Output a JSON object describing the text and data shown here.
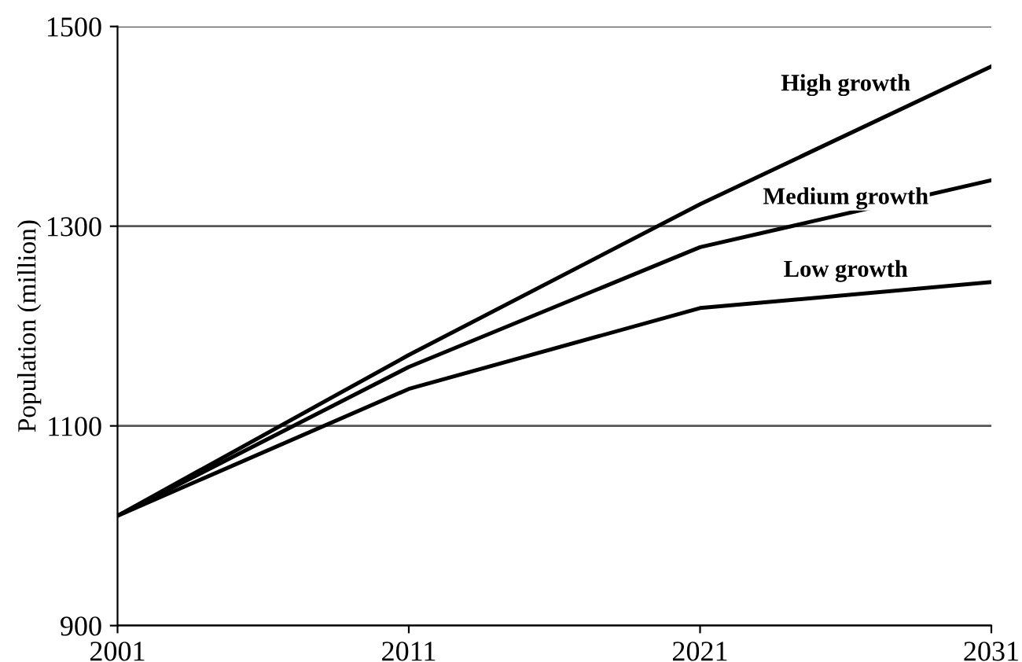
{
  "chart_data": {
    "type": "line",
    "ylabel": "Population (million)",
    "categories": [
      "2001",
      "2011",
      "2021",
      "2031"
    ],
    "series": [
      {
        "name": "High growth",
        "color": "#000000",
        "values": [
          1010,
          1171,
          1322,
          1460
        ]
      },
      {
        "name": "Medium growth",
        "color": "#000000",
        "values": [
          1010,
          1159,
          1279,
          1346
        ]
      },
      {
        "name": "Low growth",
        "color": "#000000",
        "values": [
          1010,
          1137,
          1218,
          1244
        ]
      }
    ],
    "ylim": [
      900,
      1500
    ],
    "yticks": [
      900,
      1100,
      1300,
      1500
    ],
    "grid": "y",
    "marker": "none",
    "line_style": "solid"
  }
}
